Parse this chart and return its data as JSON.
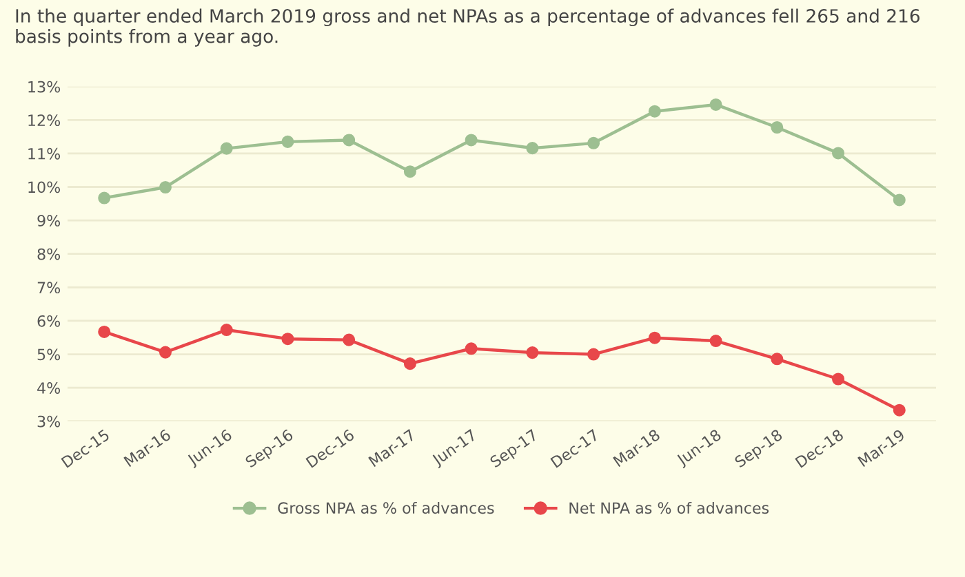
{
  "chart_data": {
    "type": "line",
    "title": "In the quarter ended March 2019 gross and net NPAs as a percentage of advances fell 265 and 216 basis points from a year ago.",
    "categories": [
      "Dec-15",
      "Mar-16",
      "Jun-16",
      "Sep-16",
      "Dec-16",
      "Mar-17",
      "Jun-17",
      "Sep-17",
      "Dec-17",
      "Mar-18",
      "Jun-18",
      "Sep-18",
      "Dec-18",
      "Mar-19"
    ],
    "series": [
      {
        "name": "Gross NPA as % of advances",
        "color": "#9dbf91",
        "values": [
          9.67,
          9.99,
          11.15,
          11.35,
          11.4,
          10.46,
          11.4,
          11.16,
          11.31,
          12.26,
          12.46,
          11.78,
          11.01,
          9.61
        ]
      },
      {
        "name": "Net NPA as % of advances",
        "color": "#e8474a",
        "values": [
          5.67,
          5.06,
          5.73,
          5.46,
          5.43,
          4.72,
          5.17,
          5.05,
          5.0,
          5.49,
          5.4,
          4.86,
          4.26,
          3.33
        ]
      }
    ],
    "ylim": [
      3,
      13
    ],
    "yticks": [
      {
        "value": 3,
        "label": "3%"
      },
      {
        "value": 4,
        "label": "4%"
      },
      {
        "value": 5,
        "label": "5%"
      },
      {
        "value": 6,
        "label": "6%"
      },
      {
        "value": 7,
        "label": "7%"
      },
      {
        "value": 8,
        "label": "8%"
      },
      {
        "value": 9,
        "label": "9%"
      },
      {
        "value": 10,
        "label": "10%"
      },
      {
        "value": 11,
        "label": "11%"
      },
      {
        "value": 12,
        "label": "12%"
      },
      {
        "value": 13,
        "label": "13%"
      }
    ],
    "grid": "y",
    "legend": "bottom",
    "marker": "circle",
    "line_style": "solid"
  }
}
